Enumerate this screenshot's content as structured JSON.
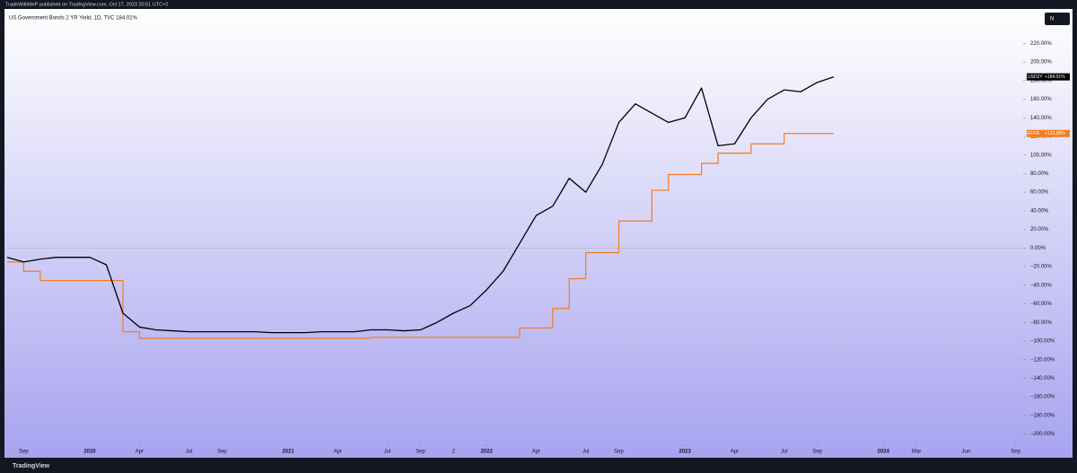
{
  "header": {
    "published": "TradeWithMeP published on TradingView.com, Oct 17, 2023 20:51 UTC+2",
    "brand": "TradingView",
    "button": "N"
  },
  "chart_data": {
    "type": "line",
    "title": "US Government Bonds 2 YR Yield, 1D, TVC  184.01%",
    "x": [
      "2019-08",
      "2019-09",
      "2019-10",
      "2019-11",
      "2019-12",
      "2020-01",
      "2020-02",
      "2020-03",
      "2020-04",
      "2020-05",
      "2020-06",
      "2020-07",
      "2020-08",
      "2020-09",
      "2020-10",
      "2020-11",
      "2020-12",
      "2021-01",
      "2021-02",
      "2021-03",
      "2021-04",
      "2021-05",
      "2021-06",
      "2021-07",
      "2021-08",
      "2021-09",
      "2021-10",
      "2021-11",
      "2021-12",
      "2022-01",
      "2022-02",
      "2022-03",
      "2022-04",
      "2022-05",
      "2022-06",
      "2022-07",
      "2022-08",
      "2022-09",
      "2022-10",
      "2022-11",
      "2022-12",
      "2023-01",
      "2023-02",
      "2023-03",
      "2023-04",
      "2023-05",
      "2023-06",
      "2023-07",
      "2023-08",
      "2023-09",
      "2023-10"
    ],
    "series": [
      {
        "name": "USD2Y",
        "color": "#000000",
        "tag": "+184.01%",
        "step": false,
        "values": [
          -10,
          -15,
          -12,
          -10,
          -10,
          -10,
          -18,
          -70,
          -85,
          -88,
          -89,
          -90,
          -90,
          -90,
          -90,
          -90,
          -91,
          -91,
          -91,
          -90,
          -90,
          -90,
          -88,
          -88,
          -89,
          -88,
          -80,
          -70,
          -62,
          -45,
          -25,
          5,
          35,
          45,
          75,
          60,
          90,
          135,
          155,
          145,
          135,
          140,
          172,
          110,
          112,
          140,
          160,
          170,
          168,
          178,
          184.01
        ]
      },
      {
        "name": "EFFR",
        "color": "#f57c1f",
        "tag": "+123.08%",
        "step": true,
        "values": [
          -15,
          -25,
          -35,
          -35,
          -35,
          -35,
          -35,
          -90,
          -97,
          -97,
          -97,
          -97,
          -97,
          -97,
          -97,
          -97,
          -97,
          -97,
          -97,
          -97,
          -97,
          -97,
          -96,
          -96,
          -96,
          -96,
          -96,
          -96,
          -96,
          -96,
          -96,
          -86,
          -86,
          -65,
          -33,
          -5,
          -5,
          29,
          29,
          62,
          79,
          79,
          91,
          102,
          102,
          112,
          112,
          123.08,
          123.08,
          123.08,
          123.08
        ]
      }
    ],
    "xlim": [
      "2019-08",
      "2024-10"
    ],
    "xticks": [
      {
        "value": "2019-09",
        "label": "Sep"
      },
      {
        "value": "2020-01",
        "label": "2020"
      },
      {
        "value": "2020-04",
        "label": "Apr"
      },
      {
        "value": "2020-07",
        "label": "Jul"
      },
      {
        "value": "2020-09",
        "label": "Sep"
      },
      {
        "value": "2021-01",
        "label": "2021"
      },
      {
        "value": "2021-04",
        "label": "Apr"
      },
      {
        "value": "2021-07",
        "label": "Jul"
      },
      {
        "value": "2021-09",
        "label": "Sep"
      },
      {
        "value": "2021-11",
        "label": "2"
      },
      {
        "value": "2022-01",
        "label": "2022"
      },
      {
        "value": "2022-04",
        "label": "Apr"
      },
      {
        "value": "2022-07",
        "label": "Jul"
      },
      {
        "value": "2022-09",
        "label": "Sep"
      },
      {
        "value": "2023-01",
        "label": "2023"
      },
      {
        "value": "2023-04",
        "label": "Apr"
      },
      {
        "value": "2023-07",
        "label": "Jul"
      },
      {
        "value": "2023-09",
        "label": "Sep"
      },
      {
        "value": "2024-01",
        "label": "2024"
      },
      {
        "value": "2024-03",
        "label": "Mar"
      },
      {
        "value": "2024-06",
        "label": "Jun"
      },
      {
        "value": "2024-09",
        "label": "Sep"
      }
    ],
    "ylim": [
      -211,
      257
    ],
    "yticks": [
      {
        "value": 220,
        "label": "220.00%"
      },
      {
        "value": 200,
        "label": "200.00%"
      },
      {
        "value": 180,
        "label": "180.00%"
      },
      {
        "value": 160,
        "label": "160.00%"
      },
      {
        "value": 140,
        "label": "140.00%"
      },
      {
        "value": 120,
        "label": "120.00%"
      },
      {
        "value": 100,
        "label": "100.00%"
      },
      {
        "value": 80,
        "label": "80.00%"
      },
      {
        "value": 60,
        "label": "60.00%"
      },
      {
        "value": 40,
        "label": "40.00%"
      },
      {
        "value": 20,
        "label": "20.00%"
      },
      {
        "value": 0,
        "label": "0.00%"
      },
      {
        "value": -20,
        "label": "−20.00%"
      },
      {
        "value": -40,
        "label": "−40.00%"
      },
      {
        "value": -60,
        "label": "−60.00%"
      },
      {
        "value": -80,
        "label": "−80.00%"
      },
      {
        "value": -100,
        "label": "−100.00%"
      },
      {
        "value": -120,
        "label": "−120.00%"
      },
      {
        "value": -140,
        "label": "−140.00%"
      },
      {
        "value": -160,
        "label": "−160.00%"
      },
      {
        "value": -180,
        "label": "−180.00%"
      },
      {
        "value": -200,
        "label": "−200.00%"
      }
    ],
    "grid": false
  }
}
